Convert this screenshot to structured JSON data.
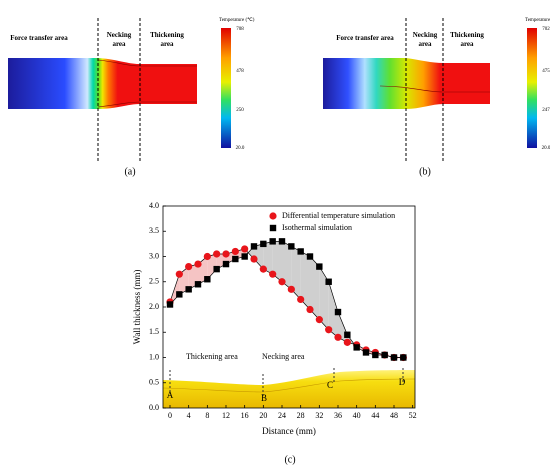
{
  "panels": {
    "a": {
      "caption": "(a)",
      "areas": [
        "Force transfer area",
        "Necking area",
        "Thickening area"
      ],
      "colorbar": {
        "title": "Temperature (℃)",
        "labels": [
          "708",
          "478",
          "250",
          "20.0"
        ]
      }
    },
    "b": {
      "caption": "(b)",
      "areas": [
        "Force transfer area",
        "Necking area",
        "Thickening area"
      ],
      "colorbar": {
        "title": "Temperature (℃)",
        "labels": [
          "702",
          "475",
          "247",
          "20.0"
        ]
      }
    }
  },
  "chart_data": {
    "type": "line",
    "caption": "(c)",
    "xlabel": "Distance (mm)",
    "ylabel": "Wall thickness (mm)",
    "x": [
      0,
      2,
      4,
      6,
      8,
      10,
      12,
      14,
      16,
      18,
      20,
      22,
      24,
      26,
      28,
      30,
      32,
      34,
      36,
      38,
      40,
      42,
      44,
      46,
      48,
      50
    ],
    "series": [
      {
        "name": "Differential temperature simulation",
        "color": "#e8151b",
        "marker": "circle",
        "values": [
          2.1,
          2.65,
          2.8,
          2.85,
          3.0,
          3.05,
          3.05,
          3.1,
          3.15,
          2.95,
          2.75,
          2.65,
          2.5,
          2.35,
          2.15,
          1.95,
          1.75,
          1.55,
          1.4,
          1.3,
          1.25,
          1.15,
          1.1,
          1.05,
          1.0,
          1.0
        ]
      },
      {
        "name": "Isothermal simulation",
        "color": "#000000",
        "marker": "square",
        "values": [
          2.05,
          2.25,
          2.35,
          2.45,
          2.55,
          2.75,
          2.85,
          2.95,
          3.0,
          3.2,
          3.25,
          3.3,
          3.3,
          3.2,
          3.1,
          3.0,
          2.8,
          2.5,
          1.9,
          1.45,
          1.2,
          1.1,
          1.05,
          1.05,
          1.0,
          1.0
        ]
      }
    ],
    "fill_colors": [
      "#f5c4c4",
      "#cfcfcf"
    ],
    "xlim": [
      -1.5,
      52.5
    ],
    "ylim": [
      0,
      4
    ],
    "xticks": [
      0,
      4,
      8,
      12,
      16,
      20,
      24,
      28,
      32,
      36,
      40,
      44,
      48,
      52
    ],
    "yticks": [
      {
        "value": 0,
        "label": "0.0"
      },
      0.5,
      {
        "value": 1,
        "label": "1.0"
      },
      1.5,
      {
        "value": 2,
        "label": "2.0"
      },
      2.5,
      {
        "value": 3,
        "label": "3.0"
      },
      3.5,
      {
        "value": 4,
        "label": "4.0"
      }
    ],
    "annotations": [
      "Thickening area",
      "Necking area",
      "A",
      "B",
      "C",
      "D"
    ]
  }
}
